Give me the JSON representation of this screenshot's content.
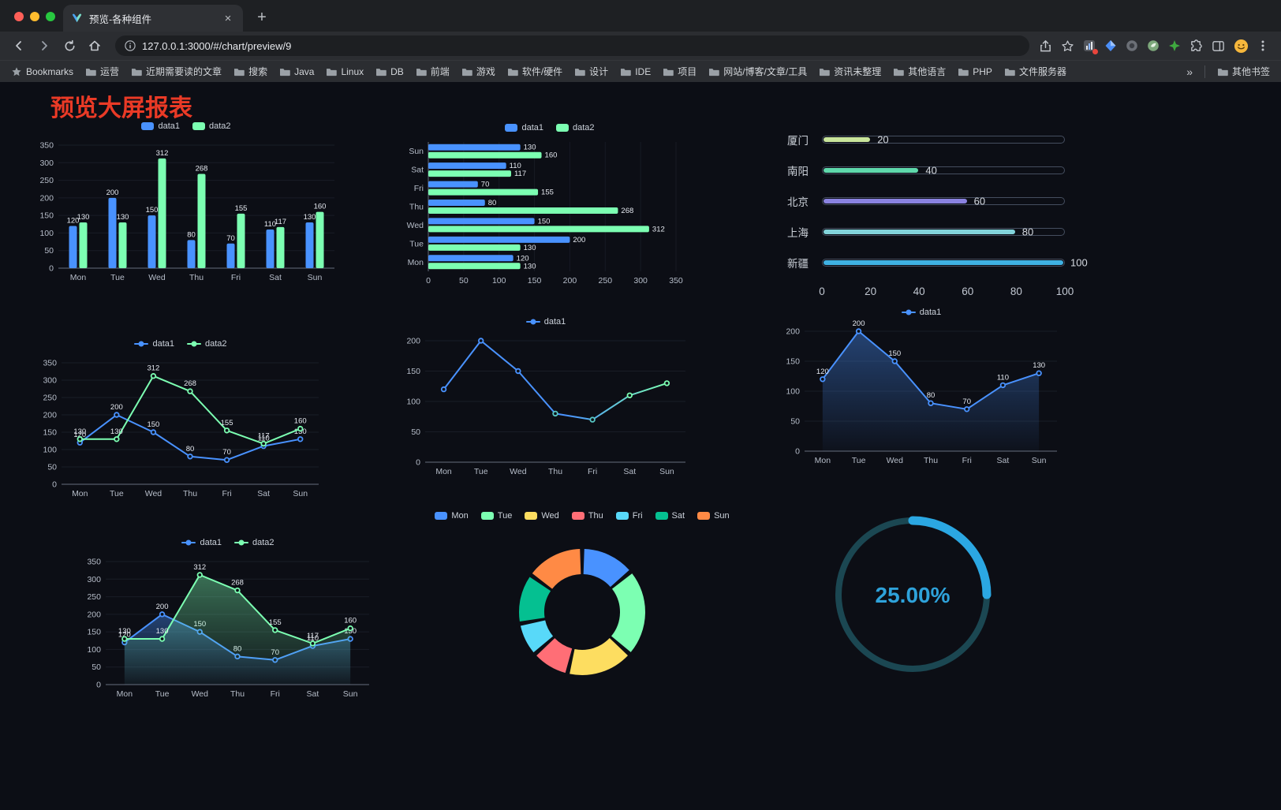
{
  "browser": {
    "tab": {
      "title": "预览-各种组件"
    },
    "url": "127.0.0.1:3000/#/chart/preview/9",
    "bookmarks_label": "Bookmarks",
    "bookmarks": [
      "运营",
      "近期需要读的文章",
      "搜索",
      "Java",
      "Linux",
      "DB",
      "前端",
      "游戏",
      "软件/硬件",
      "设计",
      "IDE",
      "项目",
      "网站/博客/文章/工具",
      "资讯未整理",
      "其他语言",
      "PHP",
      "文件服务器"
    ],
    "overflow_chevron": "»",
    "other_bookmarks": "其他书签",
    "traffic_lights": [
      "#ff5f57",
      "#febc2e",
      "#28c840"
    ]
  },
  "icons": {
    "close": "×",
    "new_tab": "+",
    "menu_dots": "⋮"
  },
  "page": {
    "title": "预览大屏报表",
    "title_color": "#ea3a26",
    "background": "#0c0e15"
  },
  "palette": {
    "blue": "#4992ff",
    "green": "#7cffb2",
    "yellow": "#fddd60",
    "red": "#ff6e76",
    "lightblue": "#58d9f9",
    "teal": "#05c091",
    "orange": "#ff8a45"
  },
  "chart_data": [
    {
      "id": "bar-vertical",
      "type": "bar",
      "title": "",
      "categories": [
        "Mon",
        "Tue",
        "Wed",
        "Thu",
        "Fri",
        "Sat",
        "Sun"
      ],
      "series": [
        {
          "name": "data1",
          "color": "#4992ff",
          "values": [
            120,
            200,
            150,
            80,
            70,
            110,
            130
          ]
        },
        {
          "name": "data2",
          "color": "#7cffb2",
          "values": [
            130,
            130,
            312,
            268,
            155,
            117,
            160
          ]
        }
      ],
      "ylim": [
        0,
        350
      ],
      "ytick_step": 50,
      "labels": true,
      "legend_position": "top",
      "grid": true
    },
    {
      "id": "bar-horizontal",
      "type": "bar",
      "variant": "horizontal",
      "title": "",
      "categories": [
        "Mon",
        "Tue",
        "Wed",
        "Thu",
        "Fri",
        "Sat",
        "Sun"
      ],
      "series": [
        {
          "name": "data1",
          "color": "#4992ff",
          "values": [
            120,
            200,
            150,
            80,
            70,
            110,
            130
          ]
        },
        {
          "name": "data2",
          "color": "#7cffb2",
          "values": [
            130,
            130,
            312,
            268,
            155,
            117,
            160
          ]
        }
      ],
      "xlim": [
        0,
        350
      ],
      "xtick_step": 50,
      "labels": true,
      "legend_position": "top",
      "grid": true
    },
    {
      "id": "city-progress",
      "type": "bar",
      "variant": "progress-list",
      "title": "",
      "items": [
        {
          "label": "厦门",
          "value": 20,
          "color": "#c9e59b"
        },
        {
          "label": "南阳",
          "value": 40,
          "color": "#5fd8ab"
        },
        {
          "label": "北京",
          "value": 60,
          "color": "#8a82e0"
        },
        {
          "label": "上海",
          "value": 80,
          "color": "#82d3da"
        },
        {
          "label": "新疆",
          "value": 100,
          "color": "#3fb1e3"
        }
      ],
      "xlim": [
        0,
        100
      ],
      "xticks": [
        0,
        20,
        40,
        60,
        80,
        100
      ]
    },
    {
      "id": "line-dual",
      "type": "line",
      "title": "",
      "categories": [
        "Mon",
        "Tue",
        "Wed",
        "Thu",
        "Fri",
        "Sat",
        "Sun"
      ],
      "series": [
        {
          "name": "data1",
          "color": "#4992ff",
          "values": [
            120,
            200,
            150,
            80,
            70,
            110,
            130
          ]
        },
        {
          "name": "data2",
          "color": "#7cffb2",
          "values": [
            130,
            130,
            312,
            268,
            155,
            117,
            160
          ]
        }
      ],
      "ylim": [
        0,
        350
      ],
      "ytick_step": 50,
      "labels": true,
      "legend_position": "top",
      "grid": true
    },
    {
      "id": "line-gradient",
      "type": "line",
      "title": "",
      "categories": [
        "Mon",
        "Tue",
        "Wed",
        "Thu",
        "Fri",
        "Sat",
        "Sun"
      ],
      "series": [
        {
          "name": "data1",
          "color": "#4992ff",
          "gradient": [
            "#4992ff",
            "#7cffb2"
          ],
          "values": [
            120,
            200,
            150,
            80,
            70,
            110,
            130
          ]
        }
      ],
      "ylim": [
        0,
        200
      ],
      "ytick_step": 50,
      "labels": false,
      "legend_position": "top",
      "grid": true
    },
    {
      "id": "line-area",
      "type": "area",
      "title": "",
      "categories": [
        "Mon",
        "Tue",
        "Wed",
        "Thu",
        "Fri",
        "Sat",
        "Sun"
      ],
      "series": [
        {
          "name": "data1",
          "color": "#4992ff",
          "values": [
            120,
            200,
            150,
            80,
            70,
            110,
            130
          ],
          "area": true
        }
      ],
      "ylim": [
        0,
        200
      ],
      "ytick_step": 50,
      "labels": true,
      "legend_position": "top",
      "grid": true
    },
    {
      "id": "line-dual-area",
      "type": "area",
      "title": "",
      "categories": [
        "Mon",
        "Tue",
        "Wed",
        "Thu",
        "Fri",
        "Sat",
        "Sun"
      ],
      "series": [
        {
          "name": "data1",
          "color": "#4992ff",
          "values": [
            120,
            200,
            150,
            80,
            70,
            110,
            130
          ],
          "area": true
        },
        {
          "name": "data2",
          "color": "#7cffb2",
          "values": [
            130,
            130,
            312,
            268,
            155,
            117,
            160
          ],
          "area": true
        }
      ],
      "ylim": [
        0,
        350
      ],
      "ytick_step": 50,
      "labels": true,
      "legend_position": "top",
      "grid": true
    },
    {
      "id": "weekday-donut",
      "type": "pie",
      "variant": "donut",
      "title": "",
      "categories": [
        "Mon",
        "Tue",
        "Wed",
        "Thu",
        "Fri",
        "Sat",
        "Sun"
      ],
      "values": [
        120,
        200,
        150,
        80,
        70,
        110,
        130
      ],
      "colors": [
        "#4992ff",
        "#7cffb2",
        "#fddd60",
        "#ff6e76",
        "#58d9f9",
        "#05c091",
        "#ff8a45"
      ],
      "legend_position": "top"
    },
    {
      "id": "gauge-progress",
      "type": "gauge",
      "title": "",
      "value": 25,
      "max": 100,
      "label": "25.00%",
      "color": "#2ba7e2",
      "track_color": "#1b4752"
    }
  ]
}
